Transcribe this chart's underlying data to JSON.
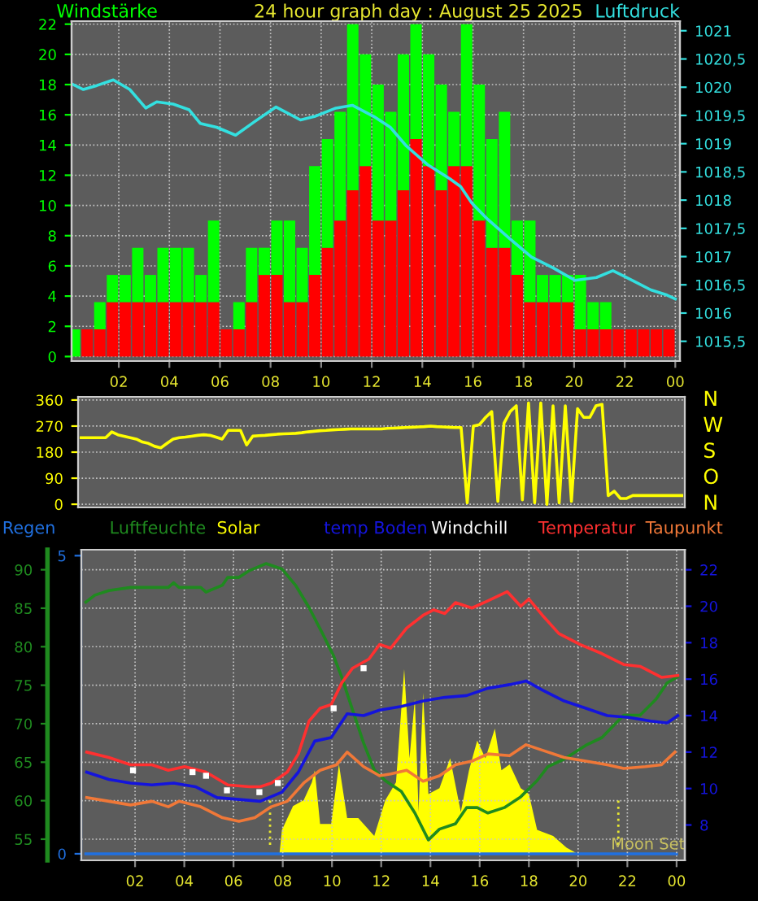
{
  "chart_data": [
    {
      "type": "bar",
      "stacked": true,
      "title": "24 hour graph day : August 25 2025",
      "ylabel": "Windstärke",
      "y2label": "Luftdruck",
      "x": [
        "2025-08-25T00:15",
        "2025-08-25T00:45",
        "2025-08-25T01:15",
        "2025-08-25T01:45",
        "2025-08-25T02:15",
        "2025-08-25T02:45",
        "2025-08-25T03:15",
        "2025-08-25T03:45",
        "2025-08-25T04:15",
        "2025-08-25T04:45",
        "2025-08-25T05:15",
        "2025-08-25T05:45",
        "2025-08-25T06:15",
        "2025-08-25T06:45",
        "2025-08-25T07:15",
        "2025-08-25T07:45",
        "2025-08-25T08:15",
        "2025-08-25T08:45",
        "2025-08-25T09:15",
        "2025-08-25T09:45",
        "2025-08-25T10:15",
        "2025-08-25T10:45",
        "2025-08-25T11:15",
        "2025-08-25T11:45",
        "2025-08-25T12:15",
        "2025-08-25T12:45",
        "2025-08-25T13:15",
        "2025-08-25T13:45",
        "2025-08-25T14:15",
        "2025-08-25T14:45",
        "2025-08-25T15:15",
        "2025-08-25T15:45",
        "2025-08-25T16:15",
        "2025-08-25T16:45",
        "2025-08-25T17:15",
        "2025-08-25T17:45",
        "2025-08-25T18:15",
        "2025-08-25T18:45",
        "2025-08-25T19:15",
        "2025-08-25T19:45",
        "2025-08-25T20:15",
        "2025-08-25T20:45",
        "2025-08-25T21:15",
        "2025-08-25T21:45",
        "2025-08-25T22:15",
        "2025-08-25T22:45",
        "2025-08-25T23:15",
        "2025-08-25T23:45"
      ],
      "series": [
        {
          "type": "bar",
          "color": "#ff0000",
          "values": [
            0,
            1.8,
            1.8,
            3.6,
            3.6,
            3.6,
            3.6,
            3.6,
            3.6,
            3.6,
            3.6,
            3.6,
            1.8,
            1.8,
            3.6,
            5.4,
            5.4,
            3.6,
            3.6,
            5.4,
            7.2,
            9,
            11,
            12.6,
            9,
            9,
            11,
            14.4,
            12.6,
            11,
            12.6,
            12.6,
            9,
            7.2,
            7.2,
            5.4,
            3.6,
            3.6,
            3.6,
            3.6,
            1.8,
            1.8,
            1.8,
            1.8,
            1.8,
            1.8,
            1.8,
            1.8
          ]
        },
        {
          "type": "bar",
          "color": "#00ff00",
          "values": [
            1.8,
            0,
            1.8,
            1.8,
            1.8,
            3.6,
            1.8,
            3.6,
            3.6,
            3.6,
            1.8,
            5.4,
            0,
            1.8,
            3.6,
            1.8,
            3.6,
            5.4,
            3.6,
            7.2,
            7.2,
            7.2,
            11,
            7.4,
            9,
            7.2,
            9,
            7.6,
            7.4,
            7,
            3.6,
            9.4,
            9,
            7.2,
            9,
            3.6,
            5.4,
            1.8,
            1.8,
            1.8,
            3.6,
            1.8,
            1.8,
            0,
            0,
            0,
            0,
            0
          ]
        },
        {
          "type": "line",
          "axis": "y2",
          "color": "#33e0e0",
          "x": [
            "2025-08-25T00:08",
            "2025-08-25T00:36",
            "2025-08-25T01:08",
            "2025-08-25T01:47",
            "2025-08-25T02:26",
            "2025-08-25T03:04",
            "2025-08-25T03:30",
            "2025-08-25T04:09",
            "2025-08-25T04:47",
            "2025-08-25T05:13",
            "2025-08-25T05:52",
            "2025-08-25T06:37",
            "2025-08-25T07:22",
            "2025-08-25T08:13",
            "2025-08-25T09:11",
            "2025-08-25T09:44",
            "2025-08-25T10:35",
            "2025-08-25T11:14",
            "2025-08-25T12:05",
            "2025-08-25T12:44",
            "2025-08-25T13:22",
            "2025-08-25T14:14",
            "2025-08-25T15:05",
            "2025-08-25T15:31",
            "2025-08-25T15:57",
            "2025-08-25T16:35",
            "2025-08-25T17:27",
            "2025-08-25T18:19",
            "2025-08-25T19:10",
            "2025-08-25T20:02",
            "2025-08-25T20:53",
            "2025-08-25T21:32",
            "2025-08-25T22:23",
            "2025-08-25T23:02",
            "2025-08-25T23:40",
            "2025-08-26T00:00"
          ],
          "values": [
            1020.06,
            1019.96,
            1020.03,
            1020.13,
            1019.96,
            1019.63,
            1019.74,
            1019.7,
            1019.6,
            1019.36,
            1019.29,
            1019.15,
            1019.39,
            1019.65,
            1019.42,
            1019.48,
            1019.63,
            1019.68,
            1019.48,
            1019.29,
            1018.96,
            1018.62,
            1018.38,
            1018.24,
            1017.95,
            1017.66,
            1017.32,
            1016.99,
            1016.8,
            1016.58,
            1016.63,
            1016.75,
            1016.56,
            1016.41,
            1016.32,
            1016.25
          ]
        }
      ],
      "xlim": [
        "2025-08-25T00:08",
        "2025-08-26T00:11"
      ],
      "xticks": [
        {
          "value": "2025-08-25T02:00",
          "label": "02"
        },
        {
          "value": "2025-08-25T04:00",
          "label": "04"
        },
        {
          "value": "2025-08-25T06:00",
          "label": "06"
        },
        {
          "value": "2025-08-25T08:00",
          "label": "08"
        },
        {
          "value": "2025-08-25T10:00",
          "label": "10"
        },
        {
          "value": "2025-08-25T12:00",
          "label": "12"
        },
        {
          "value": "2025-08-25T14:00",
          "label": "14"
        },
        {
          "value": "2025-08-25T16:00",
          "label": "16"
        },
        {
          "value": "2025-08-25T18:00",
          "label": "18"
        },
        {
          "value": "2025-08-25T20:00",
          "label": "20"
        },
        {
          "value": "2025-08-25T22:00",
          "label": "22"
        },
        {
          "value": "2025-08-26T00:00",
          "label": "00"
        }
      ],
      "ylim": [
        -0.3,
        22.2
      ],
      "yticks": [
        0,
        2,
        4,
        6,
        8,
        10,
        12,
        14,
        16,
        18,
        20,
        22
      ],
      "y2lim": [
        1015.15,
        1021.17
      ],
      "y2ticks": [
        {
          "value": 1015.5,
          "label": "1015,5"
        },
        1016,
        {
          "value": 1016.5,
          "label": "1016,5"
        },
        1017,
        {
          "value": 1017.5,
          "label": "1017,5"
        },
        1018,
        {
          "value": 1018.5,
          "label": "1018,5"
        },
        1019,
        {
          "value": 1019.5,
          "label": "1019,5"
        },
        1020,
        {
          "value": 1020.5,
          "label": "1020,5"
        },
        1021
      ],
      "grid": true
    },
    {
      "type": "line",
      "series": [
        {
          "color": "#ffff00",
          "values": [
            230,
            230,
            230,
            230,
            230,
            250,
            240,
            235,
            230,
            225,
            215,
            210,
            200,
            195,
            210,
            225,
            230,
            232,
            235,
            238,
            240,
            238,
            232,
            225,
            255,
            255,
            255,
            205,
            235,
            237,
            238,
            240,
            242,
            243,
            244,
            245,
            247,
            250,
            252,
            254,
            255,
            257,
            258,
            259,
            260,
            260,
            260,
            260,
            260,
            260,
            262,
            263,
            264,
            265,
            266,
            267,
            268,
            270,
            268,
            267,
            266,
            265,
            265,
            5,
            270,
            275,
            300,
            320,
            10,
            280,
            320,
            340,
            15,
            350,
            5,
            350,
            0,
            340,
            5,
            340,
            10,
            330,
            300,
            300,
            340,
            345,
            30,
            45,
            20,
            20,
            30,
            30,
            30,
            30,
            30,
            30,
            30,
            30,
            30
          ]
        }
      ],
      "categories": [
        null,
        null,
        null,
        null,
        null,
        null,
        null,
        null,
        null,
        null,
        null,
        null,
        null,
        null,
        null,
        null,
        null,
        null,
        null,
        null,
        null,
        null,
        null,
        null,
        null,
        null,
        null,
        null,
        null,
        null,
        null,
        null,
        null,
        null,
        null,
        null,
        null,
        null,
        null,
        null,
        null,
        null,
        null,
        null,
        null,
        null,
        null,
        null,
        null,
        null,
        null,
        null,
        null,
        null,
        null,
        null,
        null,
        null,
        null,
        null,
        null,
        null,
        null,
        null,
        null,
        null,
        null,
        null,
        null,
        null,
        null,
        null,
        null,
        null,
        null,
        null,
        null,
        null,
        null,
        null,
        null,
        null,
        null,
        null,
        null,
        null,
        null,
        null,
        null,
        null,
        null,
        null,
        null,
        null,
        null,
        null,
        null,
        null,
        null
      ],
      "ylim": [
        -11,
        371
      ],
      "yticks": [
        0,
        90,
        180,
        270,
        360
      ],
      "annotations": [
        "N",
        "W",
        "S",
        "O",
        "N"
      ],
      "tick_labels": "y",
      "grid": "y"
    },
    {
      "type": "line",
      "legend": "top",
      "series": [
        {
          "name": "Regen",
          "type": "line",
          "axis": "y3",
          "color": "#2070e0",
          "x": [
            "2025-08-25T00:00",
            "2025-08-26T00:00"
          ],
          "values": [
            0,
            0
          ]
        },
        {
          "name": "Luftfeuchte",
          "type": "line",
          "axis": "y",
          "color": "#1f8a1f",
          "x": [
            "2025-08-25T00:00",
            "2025-08-25T00:22",
            "2025-08-25T00:56",
            "2025-08-25T01:49",
            "2025-08-25T03:21",
            "2025-08-25T03:34",
            "2025-08-25T03:47",
            "2025-08-25T04:40",
            "2025-08-25T04:53",
            "2025-08-25T05:33",
            "2025-08-25T05:46",
            "2025-08-25T06:13",
            "2025-08-25T06:39",
            "2025-08-25T07:19",
            "2025-08-25T07:58",
            "2025-08-25T08:31",
            "2025-08-25T09:04",
            "2025-08-25T09:38",
            "2025-08-25T10:04",
            "2025-08-25T10:24",
            "2025-08-25T10:50",
            "2025-08-25T11:17",
            "2025-08-25T11:43",
            "2025-08-25T12:10",
            "2025-08-25T12:49",
            "2025-08-25T13:22",
            "2025-08-25T13:55",
            "2025-08-25T14:22",
            "2025-08-25T15:01",
            "2025-08-25T15:28",
            "2025-08-25T15:54",
            "2025-08-25T16:20",
            "2025-08-25T17:00",
            "2025-08-25T17:40",
            "2025-08-25T18:20",
            "2025-08-25T18:46",
            "2025-08-25T19:26",
            "2025-08-25T20:19",
            "2025-08-25T20:58",
            "2025-08-25T21:51",
            "2025-08-25T22:31",
            "2025-08-25T23:10",
            "2025-08-25T23:37",
            "2025-08-26T00:03"
          ],
          "values": [
            85.8,
            86.7,
            87.3,
            87.7,
            87.7,
            88.3,
            87.7,
            87.7,
            87.1,
            88.0,
            89.0,
            89.0,
            89.9,
            90.8,
            90.1,
            88.0,
            85.1,
            81.6,
            78.8,
            76.0,
            71.8,
            67.5,
            64.0,
            62.6,
            61.2,
            58.4,
            54.9,
            56.3,
            57.0,
            59.1,
            59.1,
            58.4,
            59.1,
            60.5,
            62.6,
            64.4,
            65.4,
            67.2,
            68.2,
            71.1,
            71.1,
            73.2,
            75.3,
            76.1
          ]
        },
        {
          "name": "Solar",
          "type": "area",
          "axis": "y3",
          "color": "#ffff00",
          "x": [
            "2025-08-25T07:52",
            "2025-08-25T07:58",
            "2025-08-25T08:25",
            "2025-08-25T08:51",
            "2025-08-25T09:11",
            "2025-08-25T09:18",
            "2025-08-25T09:31",
            "2025-08-25T09:58",
            "2025-08-25T10:17",
            "2025-08-25T10:37",
            "2025-08-25T11:04",
            "2025-08-25T11:43",
            "2025-08-25T12:10",
            "2025-08-25T12:36",
            "2025-08-25T12:56",
            "2025-08-25T13:09",
            "2025-08-25T13:22",
            "2025-08-25T13:31",
            "2025-08-25T13:42",
            "2025-08-25T13:55",
            "2025-08-25T14:22",
            "2025-08-25T14:48",
            "2025-08-25T15:14",
            "2025-08-25T15:34",
            "2025-08-25T15:54",
            "2025-08-25T16:14",
            "2025-08-25T16:37",
            "2025-08-25T16:53",
            "2025-08-25T17:13",
            "2025-08-25T17:40",
            "2025-08-25T18:00",
            "2025-08-25T18:20",
            "2025-08-25T18:59",
            "2025-08-25T19:32",
            "2025-08-25T19:59"
          ],
          "values": [
            0,
            0.4,
            0.8,
            0.9,
            1.2,
            1.4,
            0.5,
            0.5,
            1.5,
            0.6,
            0.6,
            0.3,
            0.9,
            1.2,
            3.1,
            1.6,
            2.6,
            0.7,
            2.7,
            1.0,
            1.1,
            1.6,
            0.7,
            1.4,
            1.9,
            1.6,
            2.1,
            1.4,
            1.5,
            1.1,
            1.0,
            0.4,
            0.3,
            0.1,
            0
          ]
        },
        {
          "name": "temp Boden",
          "type": "line",
          "axis": "y2",
          "color": "#1414dc",
          "x": [
            "2025-08-25T00:02",
            "2025-08-25T00:56",
            "2025-08-25T01:49",
            "2025-08-25T02:41",
            "2025-08-25T03:34",
            "2025-08-25T04:27",
            "2025-08-25T05:20",
            "2025-08-25T06:13",
            "2025-08-25T07:05",
            "2025-08-25T07:58",
            "2025-08-25T08:38",
            "2025-08-25T09:18",
            "2025-08-25T09:58",
            "2025-08-25T10:37",
            "2025-08-25T11:17",
            "2025-08-25T11:56",
            "2025-08-25T12:49",
            "2025-08-25T13:42",
            "2025-08-25T14:35",
            "2025-08-25T15:28",
            "2025-08-25T16:20",
            "2025-08-25T17:13",
            "2025-08-25T17:53",
            "2025-08-25T18:33",
            "2025-08-25T19:26",
            "2025-08-25T20:19",
            "2025-08-25T21:11",
            "2025-08-25T22:04",
            "2025-08-25T22:57",
            "2025-08-25T23:37",
            "2025-08-26T00:03"
          ],
          "values": [
            10.9,
            10.5,
            10.3,
            10.2,
            10.3,
            10.1,
            9.5,
            9.4,
            9.3,
            9.8,
            10.9,
            12.6,
            12.8,
            14.1,
            14.0,
            14.3,
            14.5,
            14.8,
            15.0,
            15.1,
            15.5,
            15.7,
            15.9,
            15.4,
            14.8,
            14.4,
            14.0,
            13.9,
            13.7,
            13.6,
            14.0
          ]
        },
        {
          "name": "Windchill",
          "type": "scatter",
          "marker": "square",
          "axis": "y2",
          "color": "#ffffff",
          "x": [
            "2025-08-25T01:55",
            "2025-08-25T04:20",
            "2025-08-25T04:53",
            "2025-08-25T05:44",
            "2025-08-25T07:03",
            "2025-08-25T07:48",
            "2025-08-25T10:04",
            "2025-08-25T11:17"
          ],
          "values": [
            11.0,
            10.9,
            10.7,
            9.9,
            9.8,
            10.3,
            14.4,
            16.6
          ]
        },
        {
          "name": "Temperatur",
          "type": "line",
          "axis": "y2",
          "color": "#ff3030",
          "x": [
            "2025-08-25T00:02",
            "2025-08-25T00:56",
            "2025-08-25T01:49",
            "2025-08-25T02:41",
            "2025-08-25T03:21",
            "2025-08-25T04:01",
            "2025-08-25T04:53",
            "2025-08-25T05:46",
            "2025-08-25T06:39",
            "2025-08-25T07:05",
            "2025-08-25T07:32",
            "2025-08-25T08:11",
            "2025-08-25T08:38",
            "2025-08-25T09:04",
            "2025-08-25T09:31",
            "2025-08-25T09:58",
            "2025-08-25T10:24",
            "2025-08-25T10:50",
            "2025-08-25T11:30",
            "2025-08-25T11:56",
            "2025-08-25T12:23",
            "2025-08-25T13:02",
            "2025-08-25T13:42",
            "2025-08-25T14:08",
            "2025-08-25T14:35",
            "2025-08-25T15:01",
            "2025-08-25T15:41",
            "2025-08-25T16:20",
            "2025-08-25T17:07",
            "2025-08-25T17:40",
            "2025-08-25T18:00",
            "2025-08-25T18:33",
            "2025-08-25T19:13",
            "2025-08-25T20:05",
            "2025-08-25T20:58",
            "2025-08-25T21:51",
            "2025-08-25T22:31",
            "2025-08-25T23:23",
            "2025-08-26T00:03"
          ],
          "values": [
            12.0,
            11.7,
            11.3,
            11.3,
            11.0,
            11.2,
            10.9,
            10.2,
            10.1,
            10.1,
            10.3,
            10.9,
            11.9,
            13.7,
            14.4,
            14.6,
            15.8,
            16.6,
            17.1,
            17.9,
            17.7,
            18.8,
            19.5,
            19.8,
            19.6,
            20.2,
            19.9,
            20.3,
            20.8,
            20.0,
            20.4,
            19.5,
            18.5,
            17.9,
            17.4,
            16.8,
            16.7,
            16.1,
            16.2
          ]
        },
        {
          "name": "Taupunkt",
          "type": "line",
          "axis": "y2",
          "color": "#f07838",
          "x": [
            "2025-08-25T00:02",
            "2025-08-25T00:56",
            "2025-08-25T01:49",
            "2025-08-25T02:41",
            "2025-08-25T03:21",
            "2025-08-25T03:47",
            "2025-08-25T04:40",
            "2025-08-25T05:33",
            "2025-08-25T06:13",
            "2025-08-25T06:52",
            "2025-08-25T07:32",
            "2025-08-25T08:11",
            "2025-08-25T08:51",
            "2025-08-25T09:31",
            "2025-08-25T10:11",
            "2025-08-25T10:37",
            "2025-08-25T11:17",
            "2025-08-25T11:56",
            "2025-08-25T12:23",
            "2025-08-25T13:02",
            "2025-08-25T13:42",
            "2025-08-25T14:22",
            "2025-08-25T15:01",
            "2025-08-25T15:41",
            "2025-08-25T16:20",
            "2025-08-25T17:13",
            "2025-08-25T17:53",
            "2025-08-25T18:33",
            "2025-08-25T19:26",
            "2025-08-25T20:19",
            "2025-08-25T21:11",
            "2025-08-25T21:51",
            "2025-08-25T22:44",
            "2025-08-25T23:23",
            "2025-08-25T23:56"
          ],
          "values": [
            9.5,
            9.3,
            9.1,
            9.3,
            9.0,
            9.3,
            9.0,
            8.4,
            8.2,
            8.4,
            9.0,
            9.3,
            10.3,
            11.0,
            11.3,
            12.0,
            11.2,
            10.7,
            10.8,
            11.0,
            10.4,
            10.7,
            11.3,
            11.5,
            11.9,
            11.8,
            12.4,
            12.1,
            11.7,
            11.5,
            11.3,
            11.1,
            11.2,
            11.3,
            12.0
          ]
        }
      ],
      "xlim": [
        "2025-08-24T23:49",
        "2025-08-26T00:20"
      ],
      "xticks": [
        {
          "value": "2025-08-25T02:00",
          "label": "02"
        },
        {
          "value": "2025-08-25T04:00",
          "label": "04"
        },
        {
          "value": "2025-08-25T06:00",
          "label": "06"
        },
        {
          "value": "2025-08-25T08:00",
          "label": "08"
        },
        {
          "value": "2025-08-25T10:00",
          "label": "10"
        },
        {
          "value": "2025-08-25T12:00",
          "label": "12"
        },
        {
          "value": "2025-08-25T14:00",
          "label": "14"
        },
        {
          "value": "2025-08-25T16:00",
          "label": "16"
        },
        {
          "value": "2025-08-25T18:00",
          "label": "18"
        },
        {
          "value": "2025-08-25T20:00",
          "label": "20"
        },
        {
          "value": "2025-08-25T22:00",
          "label": "22"
        },
        {
          "value": "2025-08-26T00:00",
          "label": "00"
        }
      ],
      "ylim": [
        52.25,
        92.6
      ],
      "yticks": [
        55,
        60,
        65,
        70,
        75,
        80,
        85,
        90
      ],
      "y2lim": [
        6.06,
        23.1
      ],
      "y2ticks": [
        8,
        10,
        12,
        14,
        16,
        18,
        20,
        22
      ],
      "y3lim": [
        -0.11,
        5.1
      ],
      "y3ticks": [
        0,
        5
      ],
      "ref_lines": [
        {
          "axis": "x",
          "value": "2025-08-25T07:29",
          "color": "#e8e830",
          "line_style": "dotted"
        },
        {
          "axis": "x",
          "value": "2025-08-25T21:38",
          "label": "Moon Set",
          "color": "#e8e830",
          "line_style": "dotted"
        }
      ],
      "grid": true
    }
  ]
}
